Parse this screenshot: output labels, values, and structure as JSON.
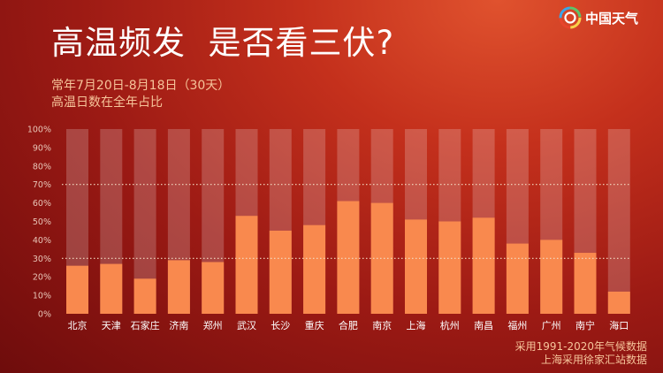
{
  "title": "高温频发  是否看三伏?",
  "subtitle_line1": "常年7月20日-8月18日（30天）",
  "subtitle_line2": "高温日数在全年占比",
  "logo_text": "中国天气",
  "source_line1": "采用1991-2020年气候数据",
  "source_line2": "上海采用徐家汇站数据",
  "colors": {
    "bar": "#f9894e",
    "bar_track": "rgba(255,255,255,0.2)",
    "reference_line": "#f3ddc4",
    "background_top": "#e0522e",
    "background_bottom": "#6e0c0c"
  },
  "chart_data": {
    "type": "bar",
    "categories": [
      "北京",
      "天津",
      "石家庄",
      "济南",
      "郑州",
      "武汉",
      "长沙",
      "重庆",
      "合肥",
      "南京",
      "上海",
      "杭州",
      "南昌",
      "福州",
      "广州",
      "南宁",
      "海口"
    ],
    "values": [
      26,
      27,
      19,
      29,
      28,
      53,
      45,
      48,
      61,
      60,
      51,
      50,
      52,
      38,
      40,
      33,
      12
    ],
    "yticks": [
      "0%",
      "10%",
      "20%",
      "30%",
      "40%",
      "50%",
      "60%",
      "70%",
      "80%",
      "90%",
      "100%"
    ],
    "ylim": [
      0,
      100
    ],
    "reference_lines": [
      30,
      70
    ],
    "background_track_max": 100
  }
}
